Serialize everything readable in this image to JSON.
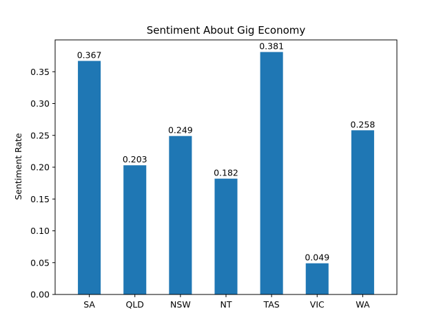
{
  "chart_data": {
    "type": "bar",
    "title": "Sentiment About Gig Economy",
    "xlabel": "",
    "ylabel": "Sentiment Rate",
    "categories": [
      "SA",
      "QLD",
      "NSW",
      "NT",
      "TAS",
      "VIC",
      "WA"
    ],
    "values": [
      0.367,
      0.203,
      0.249,
      0.182,
      0.381,
      0.049,
      0.258
    ],
    "data_labels": [
      "0.367",
      "0.203",
      "0.249",
      "0.182",
      "0.381",
      "0.049",
      "0.258"
    ],
    "ylim": [
      0,
      0.4
    ],
    "yticks": [
      0.0,
      0.05,
      0.1,
      0.15,
      0.2,
      0.25,
      0.3,
      0.35
    ],
    "ytick_labels": [
      "0.00",
      "0.05",
      "0.10",
      "0.15",
      "0.20",
      "0.25",
      "0.30",
      "0.35"
    ],
    "grid": false,
    "legend": "none",
    "bar_color": "#1f77b4"
  }
}
